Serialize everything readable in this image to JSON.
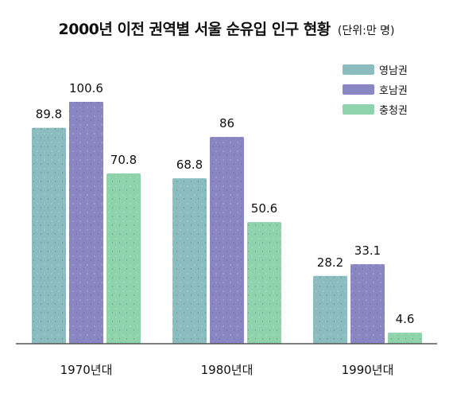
{
  "title": {
    "main": "2000년 이전 권역별 서울 순유입 인구 현황",
    "unit": "(단위:만 명)"
  },
  "chart_data": {
    "type": "bar",
    "title": "2000년 이전 권역별 서울 순유입 인구 현황",
    "unit": "(단위:만 명)",
    "categories": [
      "1970년대",
      "1980년대",
      "1990년대"
    ],
    "series": [
      {
        "name": "영남권",
        "color": "#8bbcbf",
        "values": [
          89.8,
          68.8,
          28.2
        ],
        "labels": [
          "89.8",
          "68.8",
          "28.2"
        ]
      },
      {
        "name": "호남권",
        "color": "#8a86c4",
        "values": [
          100.6,
          86,
          33.1
        ],
        "labels": [
          "100.6",
          "86",
          "33.1"
        ]
      },
      {
        "name": "충청권",
        "color": "#8fd3ad",
        "values": [
          70.8,
          50.6,
          4.6
        ],
        "labels": [
          "70.8",
          "50.6",
          "4.6"
        ]
      }
    ],
    "ylim": [
      0,
      100.6
    ],
    "legend_position": "top-right",
    "grid": false
  }
}
